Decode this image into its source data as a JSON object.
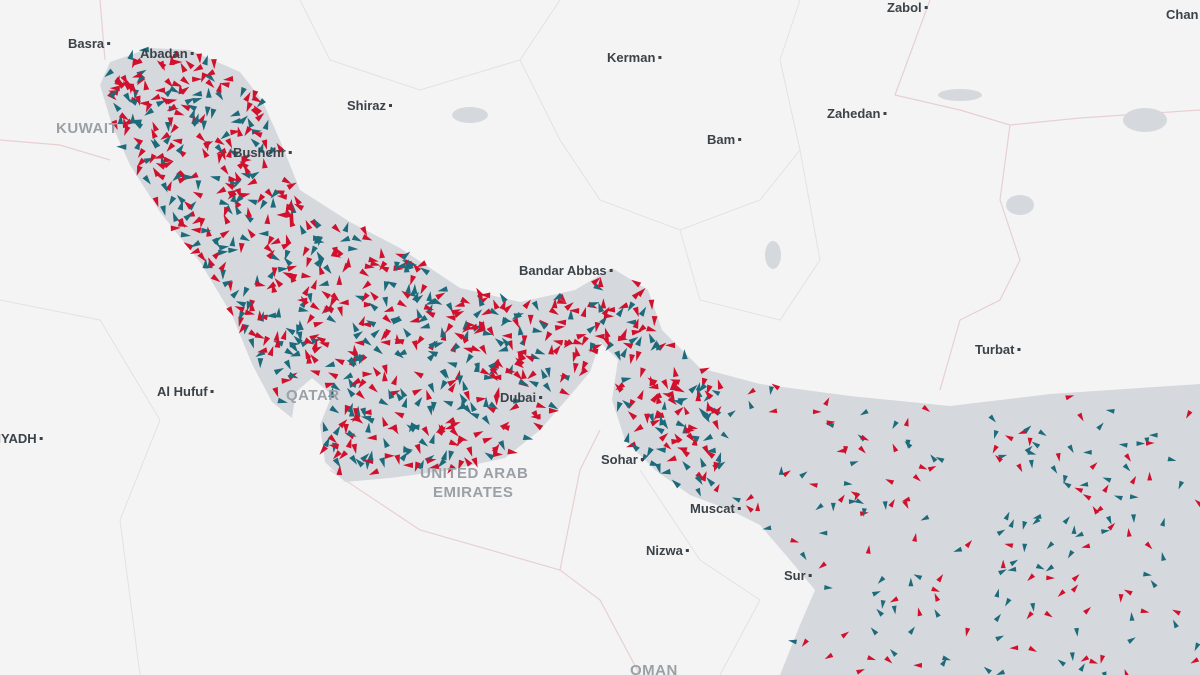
{
  "map": {
    "labels": [
      {
        "text": "Basra",
        "kind": "city"
      },
      {
        "text": "Abadan",
        "kind": "city"
      },
      {
        "text": "KUWAIT",
        "kind": "country"
      },
      {
        "text": "Shiraz",
        "kind": "city"
      },
      {
        "text": "Kerman",
        "kind": "city"
      },
      {
        "text": "Zabol",
        "kind": "city"
      },
      {
        "text": "Chan",
        "kind": "city"
      },
      {
        "text": "Bushehr",
        "kind": "city"
      },
      {
        "text": "Bam",
        "kind": "city"
      },
      {
        "text": "Zahedan",
        "kind": "city"
      },
      {
        "text": "Bandar Abbas",
        "kind": "city"
      },
      {
        "text": "Turbat",
        "kind": "city"
      },
      {
        "text": "Al Hufuf",
        "kind": "city"
      },
      {
        "text": "RIYADH",
        "kind": "city"
      },
      {
        "text": "QATAR",
        "kind": "country"
      },
      {
        "text": "Dubai",
        "kind": "city"
      },
      {
        "text": "UNITED ARAB",
        "kind": "country"
      },
      {
        "text": "EMIRATES",
        "kind": "country"
      },
      {
        "text": "Sohar",
        "kind": "city"
      },
      {
        "text": "Muscat",
        "kind": "city"
      },
      {
        "text": "Nizwa",
        "kind": "city"
      },
      {
        "text": "Sur",
        "kind": "city"
      },
      {
        "text": "OMAN",
        "kind": "country"
      }
    ]
  }
}
